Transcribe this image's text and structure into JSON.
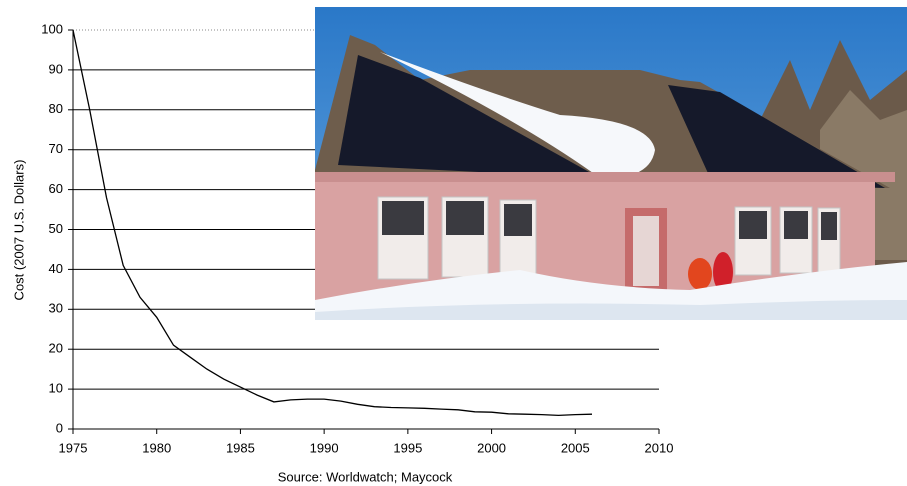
{
  "chart_data": {
    "type": "line",
    "y_label": "Cost (2007 U.S. Dollars)",
    "source": "Source: Worldwatch; Maycock",
    "x": [
      1975,
      1976,
      1977,
      1978,
      1979,
      1980,
      1981,
      1982,
      1983,
      1984,
      1985,
      1986,
      1987,
      1988,
      1989,
      1990,
      1991,
      1992,
      1993,
      1994,
      1995,
      1996,
      1997,
      1998,
      1999,
      2000,
      2001,
      2002,
      2003,
      2004,
      2005,
      2006
    ],
    "values": [
      100,
      80,
      58,
      41,
      33,
      28,
      21,
      18,
      15,
      12.5,
      10.5,
      8.5,
      6.8,
      7.3,
      7.5,
      7.5,
      7,
      6.2,
      5.6,
      5.4,
      5.3,
      5.2,
      5,
      4.8,
      4.3,
      4.2,
      3.8,
      3.7,
      3.6,
      3.4,
      3.6,
      3.7
    ],
    "color": "#000000",
    "xlim": [
      1975,
      2010
    ],
    "xticks": [
      1975,
      1980,
      1985,
      1990,
      1995,
      2000,
      2005,
      2010
    ],
    "ylim": [
      0,
      100
    ],
    "yticks": [
      0,
      10,
      20,
      30,
      40,
      50,
      60,
      70,
      80,
      90,
      100
    ],
    "grid": true
  }
}
